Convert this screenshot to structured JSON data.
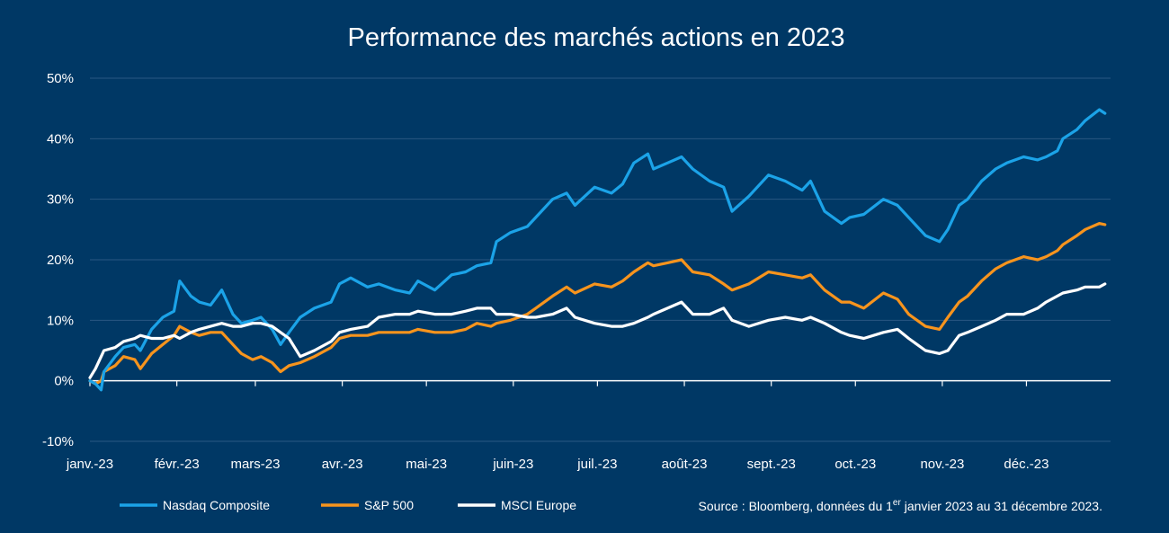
{
  "chart_data": {
    "type": "line",
    "title": "Performance des marchés actions en 2023",
    "xlabel": "",
    "ylabel": "",
    "x_tick_labels": [
      "janv.-23",
      "févr.-23",
      "mars-23",
      "avr.-23",
      "mai-23",
      "juin-23",
      "juil.-23",
      "août-23",
      "sept.-23",
      "oct.-23",
      "nov.-23",
      "déc.-23"
    ],
    "y_tick_labels": [
      "-10%",
      "0%",
      "10%",
      "20%",
      "30%",
      "40%",
      "50%"
    ],
    "y_ticks": [
      -10,
      0,
      10,
      20,
      30,
      40,
      50
    ],
    "ylim": [
      -10,
      50
    ],
    "xlim": [
      "2023-01-01",
      "2023-12-31"
    ],
    "grid": "horizontal",
    "legend_position": "bottom-left",
    "series": [
      {
        "name": "Nasdaq Composite",
        "color": "#1ba3e8",
        "x": [
          "2023-01-01",
          "2023-01-03",
          "2023-01-05",
          "2023-01-06",
          "2023-01-10",
          "2023-01-13",
          "2023-01-17",
          "2023-01-19",
          "2023-01-23",
          "2023-01-27",
          "2023-01-31",
          "2023-02-02",
          "2023-02-06",
          "2023-02-09",
          "2023-02-13",
          "2023-02-17",
          "2023-02-21",
          "2023-02-24",
          "2023-02-28",
          "2023-03-03",
          "2023-03-07",
          "2023-03-10",
          "2023-03-13",
          "2023-03-17",
          "2023-03-22",
          "2023-03-28",
          "2023-03-31",
          "2023-04-04",
          "2023-04-10",
          "2023-04-14",
          "2023-04-20",
          "2023-04-25",
          "2023-04-28",
          "2023-05-04",
          "2023-05-10",
          "2023-05-15",
          "2023-05-19",
          "2023-05-24",
          "2023-05-26",
          "2023-05-31",
          "2023-06-06",
          "2023-06-09",
          "2023-06-15",
          "2023-06-20",
          "2023-06-23",
          "2023-06-30",
          "2023-07-06",
          "2023-07-10",
          "2023-07-14",
          "2023-07-19",
          "2023-07-21",
          "2023-07-26",
          "2023-07-31",
          "2023-08-04",
          "2023-08-10",
          "2023-08-15",
          "2023-08-18",
          "2023-08-24",
          "2023-08-31",
          "2023-09-06",
          "2023-09-12",
          "2023-09-15",
          "2023-09-20",
          "2023-09-26",
          "2023-09-29",
          "2023-10-04",
          "2023-10-11",
          "2023-10-16",
          "2023-10-20",
          "2023-10-26",
          "2023-10-31",
          "2023-11-03",
          "2023-11-07",
          "2023-11-10",
          "2023-11-15",
          "2023-11-20",
          "2023-11-24",
          "2023-11-30",
          "2023-12-05",
          "2023-12-08",
          "2023-12-12",
          "2023-12-14",
          "2023-12-19",
          "2023-12-22",
          "2023-12-27",
          "2023-12-29"
        ],
        "values": [
          0.0,
          -0.5,
          -1.5,
          1.5,
          4.0,
          5.5,
          6.0,
          5.0,
          8.5,
          10.5,
          11.5,
          16.5,
          14.0,
          13.0,
          12.5,
          15.0,
          11.0,
          9.5,
          10.0,
          10.5,
          8.5,
          6.0,
          8.0,
          10.5,
          12.0,
          13.0,
          16.0,
          17.0,
          15.5,
          16.0,
          15.0,
          14.5,
          16.5,
          15.0,
          17.5,
          18.0,
          19.0,
          19.5,
          23.0,
          24.5,
          25.5,
          27.0,
          30.0,
          31.0,
          29.0,
          32.0,
          31.0,
          32.5,
          36.0,
          37.5,
          35.0,
          36.0,
          37.0,
          35.0,
          33.0,
          32.0,
          28.0,
          30.5,
          34.0,
          33.0,
          31.5,
          33.0,
          28.0,
          26.0,
          27.0,
          27.5,
          30.0,
          29.0,
          27.0,
          24.0,
          23.0,
          25.0,
          29.0,
          30.0,
          33.0,
          35.0,
          36.0,
          37.0,
          36.5,
          37.0,
          38.0,
          40.0,
          41.5,
          43.0,
          44.8,
          44.2
        ]
      },
      {
        "name": "S&P 500",
        "color": "#f7941d",
        "x": [
          "2023-01-01",
          "2023-01-03",
          "2023-01-05",
          "2023-01-06",
          "2023-01-10",
          "2023-01-13",
          "2023-01-17",
          "2023-01-19",
          "2023-01-23",
          "2023-01-27",
          "2023-01-31",
          "2023-02-02",
          "2023-02-06",
          "2023-02-09",
          "2023-02-13",
          "2023-02-17",
          "2023-02-21",
          "2023-02-24",
          "2023-02-28",
          "2023-03-03",
          "2023-03-07",
          "2023-03-10",
          "2023-03-13",
          "2023-03-17",
          "2023-03-22",
          "2023-03-28",
          "2023-03-31",
          "2023-04-04",
          "2023-04-10",
          "2023-04-14",
          "2023-04-20",
          "2023-04-25",
          "2023-04-28",
          "2023-05-04",
          "2023-05-10",
          "2023-05-15",
          "2023-05-19",
          "2023-05-24",
          "2023-05-26",
          "2023-05-31",
          "2023-06-06",
          "2023-06-09",
          "2023-06-15",
          "2023-06-20",
          "2023-06-23",
          "2023-06-30",
          "2023-07-06",
          "2023-07-10",
          "2023-07-14",
          "2023-07-19",
          "2023-07-21",
          "2023-07-26",
          "2023-07-31",
          "2023-08-04",
          "2023-08-10",
          "2023-08-15",
          "2023-08-18",
          "2023-08-24",
          "2023-08-31",
          "2023-09-06",
          "2023-09-12",
          "2023-09-15",
          "2023-09-20",
          "2023-09-26",
          "2023-09-29",
          "2023-10-04",
          "2023-10-11",
          "2023-10-16",
          "2023-10-20",
          "2023-10-26",
          "2023-10-31",
          "2023-11-03",
          "2023-11-07",
          "2023-11-10",
          "2023-11-15",
          "2023-11-20",
          "2023-11-24",
          "2023-11-30",
          "2023-12-05",
          "2023-12-08",
          "2023-12-12",
          "2023-12-14",
          "2023-12-19",
          "2023-12-22",
          "2023-12-27",
          "2023-12-29"
        ],
        "values": [
          0.0,
          -0.5,
          0.0,
          1.5,
          2.5,
          4.0,
          3.5,
          2.0,
          4.5,
          6.0,
          7.5,
          9.0,
          8.0,
          7.5,
          8.0,
          8.0,
          6.0,
          4.5,
          3.5,
          4.0,
          3.0,
          1.5,
          2.5,
          3.0,
          4.0,
          5.5,
          7.0,
          7.5,
          7.5,
          8.0,
          8.0,
          8.0,
          8.5,
          8.0,
          8.0,
          8.5,
          9.5,
          9.0,
          9.5,
          10.0,
          11.0,
          12.0,
          14.0,
          15.5,
          14.5,
          16.0,
          15.5,
          16.5,
          18.0,
          19.5,
          19.0,
          19.5,
          20.0,
          18.0,
          17.5,
          16.0,
          15.0,
          16.0,
          18.0,
          17.5,
          17.0,
          17.5,
          15.0,
          13.0,
          13.0,
          12.0,
          14.5,
          13.5,
          11.0,
          9.0,
          8.5,
          10.5,
          13.0,
          14.0,
          16.5,
          18.5,
          19.5,
          20.5,
          20.0,
          20.5,
          21.5,
          22.5,
          24.0,
          25.0,
          26.0,
          25.8
        ]
      },
      {
        "name": "MSCI Europe",
        "color": "#ffffff",
        "x": [
          "2023-01-01",
          "2023-01-03",
          "2023-01-05",
          "2023-01-06",
          "2023-01-10",
          "2023-01-13",
          "2023-01-17",
          "2023-01-19",
          "2023-01-23",
          "2023-01-27",
          "2023-01-31",
          "2023-02-02",
          "2023-02-06",
          "2023-02-09",
          "2023-02-13",
          "2023-02-17",
          "2023-02-21",
          "2023-02-24",
          "2023-02-28",
          "2023-03-03",
          "2023-03-07",
          "2023-03-10",
          "2023-03-13",
          "2023-03-17",
          "2023-03-22",
          "2023-03-28",
          "2023-03-31",
          "2023-04-04",
          "2023-04-10",
          "2023-04-14",
          "2023-04-20",
          "2023-04-25",
          "2023-04-28",
          "2023-05-04",
          "2023-05-10",
          "2023-05-15",
          "2023-05-19",
          "2023-05-24",
          "2023-05-26",
          "2023-05-31",
          "2023-06-06",
          "2023-06-09",
          "2023-06-15",
          "2023-06-20",
          "2023-06-23",
          "2023-06-30",
          "2023-07-06",
          "2023-07-10",
          "2023-07-14",
          "2023-07-19",
          "2023-07-21",
          "2023-07-26",
          "2023-07-31",
          "2023-08-04",
          "2023-08-10",
          "2023-08-15",
          "2023-08-18",
          "2023-08-24",
          "2023-08-31",
          "2023-09-06",
          "2023-09-12",
          "2023-09-15",
          "2023-09-20",
          "2023-09-26",
          "2023-09-29",
          "2023-10-04",
          "2023-10-11",
          "2023-10-16",
          "2023-10-20",
          "2023-10-26",
          "2023-10-31",
          "2023-11-03",
          "2023-11-07",
          "2023-11-10",
          "2023-11-15",
          "2023-11-20",
          "2023-11-24",
          "2023-11-30",
          "2023-12-05",
          "2023-12-08",
          "2023-12-12",
          "2023-12-14",
          "2023-12-19",
          "2023-12-22",
          "2023-12-27",
          "2023-12-29"
        ],
        "values": [
          0.5,
          2.0,
          4.0,
          5.0,
          5.5,
          6.5,
          7.0,
          7.5,
          7.0,
          7.0,
          7.5,
          7.0,
          8.0,
          8.5,
          9.0,
          9.5,
          9.0,
          9.0,
          9.5,
          9.5,
          9.0,
          8.0,
          7.0,
          4.0,
          5.0,
          6.5,
          8.0,
          8.5,
          9.0,
          10.5,
          11.0,
          11.0,
          11.5,
          11.0,
          11.0,
          11.5,
          12.0,
          12.0,
          11.0,
          11.0,
          10.5,
          10.5,
          11.0,
          12.0,
          10.5,
          9.5,
          9.0,
          9.0,
          9.5,
          10.5,
          11.0,
          12.0,
          13.0,
          11.0,
          11.0,
          12.0,
          10.0,
          9.0,
          10.0,
          10.5,
          10.0,
          10.5,
          9.5,
          8.0,
          7.5,
          7.0,
          8.0,
          8.5,
          7.0,
          5.0,
          4.5,
          5.0,
          7.5,
          8.0,
          9.0,
          10.0,
          11.0,
          11.0,
          12.0,
          13.0,
          14.0,
          14.5,
          15.0,
          15.5,
          15.5,
          16.0
        ]
      }
    ],
    "source": {
      "prefix": "Source : Bloomberg, données du 1",
      "superscript": "er",
      "suffix": " janvier 2023 au 31 décembre 2023."
    }
  }
}
